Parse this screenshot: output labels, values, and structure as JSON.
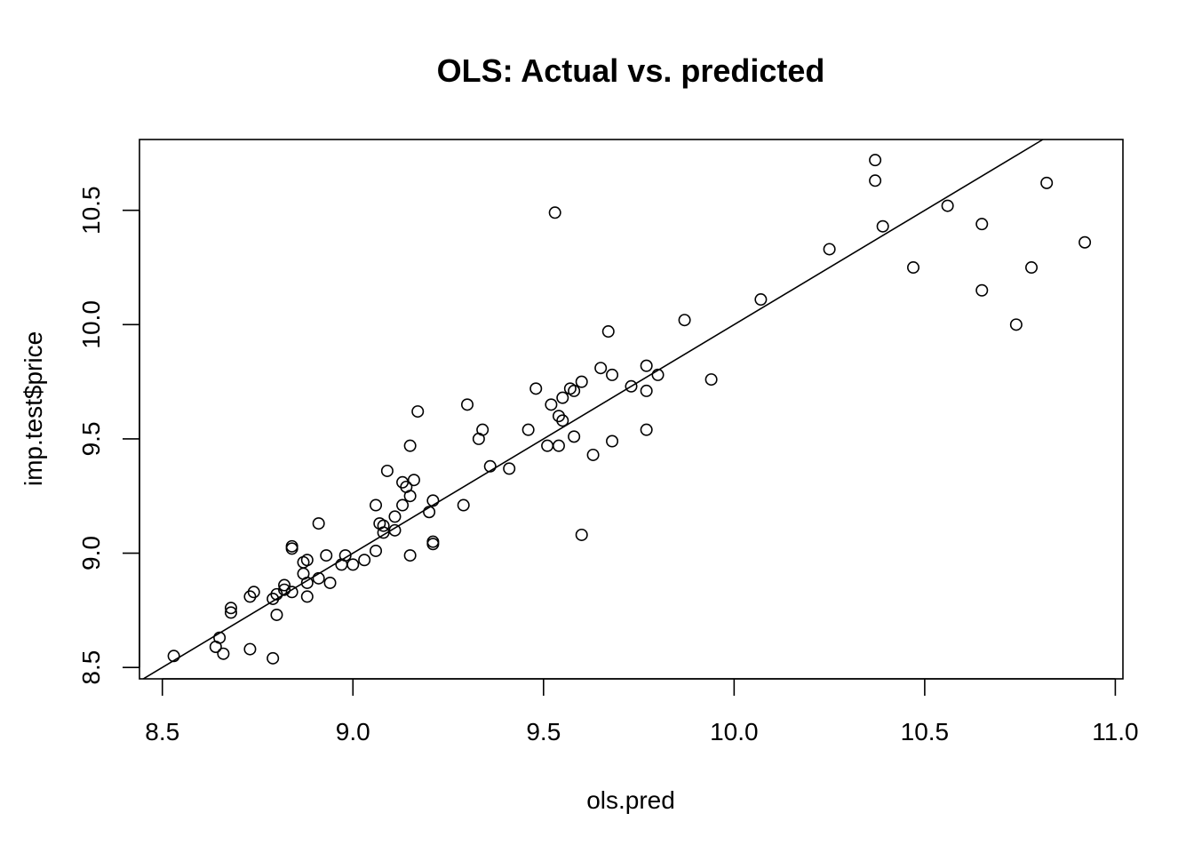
{
  "chart_data": {
    "type": "scatter",
    "title": "OLS: Actual vs. predicted",
    "xlabel": "ols.pred",
    "ylabel": "imp.test$price",
    "xlim": [
      8.44,
      11.02
    ],
    "ylim": [
      8.45,
      10.81
    ],
    "x_ticks": [
      "8.5",
      "9.0",
      "9.5",
      "10.0",
      "10.5",
      "11.0"
    ],
    "y_ticks": [
      "8.5",
      "9.0",
      "9.5",
      "10.0",
      "10.5"
    ],
    "grid": false,
    "reference_line": {
      "slope": 1,
      "intercept": 0
    },
    "points": [
      [
        8.53,
        8.55
      ],
      [
        8.64,
        8.59
      ],
      [
        8.65,
        8.63
      ],
      [
        8.66,
        8.56
      ],
      [
        8.68,
        8.74
      ],
      [
        8.68,
        8.76
      ],
      [
        8.73,
        8.81
      ],
      [
        8.73,
        8.58
      ],
      [
        8.74,
        8.83
      ],
      [
        8.79,
        8.8
      ],
      [
        8.8,
        8.82
      ],
      [
        8.8,
        8.73
      ],
      [
        8.79,
        8.54
      ],
      [
        8.82,
        8.84
      ],
      [
        8.82,
        8.86
      ],
      [
        8.84,
        8.83
      ],
      [
        8.84,
        9.03
      ],
      [
        8.84,
        9.02
      ],
      [
        8.87,
        8.91
      ],
      [
        8.87,
        8.96
      ],
      [
        8.88,
        8.97
      ],
      [
        8.88,
        8.81
      ],
      [
        8.88,
        8.87
      ],
      [
        8.91,
        8.89
      ],
      [
        8.91,
        9.13
      ],
      [
        8.93,
        8.99
      ],
      [
        8.94,
        8.87
      ],
      [
        8.97,
        8.95
      ],
      [
        8.98,
        8.99
      ],
      [
        9.0,
        8.95
      ],
      [
        9.03,
        8.97
      ],
      [
        9.06,
        9.21
      ],
      [
        9.06,
        9.01
      ],
      [
        9.07,
        9.13
      ],
      [
        9.08,
        9.12
      ],
      [
        9.08,
        9.09
      ],
      [
        9.09,
        9.36
      ],
      [
        9.11,
        9.1
      ],
      [
        9.11,
        9.16
      ],
      [
        9.13,
        9.31
      ],
      [
        9.13,
        9.21
      ],
      [
        9.14,
        9.29
      ],
      [
        9.15,
        9.47
      ],
      [
        9.15,
        9.25
      ],
      [
        9.15,
        8.99
      ],
      [
        9.16,
        9.32
      ],
      [
        9.17,
        9.62
      ],
      [
        9.2,
        9.18
      ],
      [
        9.21,
        9.23
      ],
      [
        9.21,
        9.04
      ],
      [
        9.21,
        9.05
      ],
      [
        9.29,
        9.21
      ],
      [
        9.3,
        9.65
      ],
      [
        9.33,
        9.5
      ],
      [
        9.34,
        9.54
      ],
      [
        9.36,
        9.38
      ],
      [
        9.41,
        9.37
      ],
      [
        9.46,
        9.54
      ],
      [
        9.48,
        9.72
      ],
      [
        9.51,
        9.47
      ],
      [
        9.52,
        9.65
      ],
      [
        9.54,
        9.6
      ],
      [
        9.54,
        9.47
      ],
      [
        9.55,
        9.68
      ],
      [
        9.55,
        9.58
      ],
      [
        9.53,
        10.49
      ],
      [
        9.57,
        9.72
      ],
      [
        9.58,
        9.71
      ],
      [
        9.58,
        9.51
      ],
      [
        9.6,
        9.75
      ],
      [
        9.6,
        9.08
      ],
      [
        9.63,
        9.43
      ],
      [
        9.65,
        9.81
      ],
      [
        9.67,
        9.97
      ],
      [
        9.68,
        9.78
      ],
      [
        9.68,
        9.49
      ],
      [
        9.73,
        9.73
      ],
      [
        9.77,
        9.82
      ],
      [
        9.77,
        9.71
      ],
      [
        9.77,
        9.54
      ],
      [
        9.8,
        9.78
      ],
      [
        9.87,
        10.02
      ],
      [
        9.94,
        9.76
      ],
      [
        10.07,
        10.11
      ],
      [
        10.25,
        10.33
      ],
      [
        10.37,
        10.63
      ],
      [
        10.37,
        10.72
      ],
      [
        10.39,
        10.43
      ],
      [
        10.47,
        10.25
      ],
      [
        10.56,
        10.52
      ],
      [
        10.65,
        10.44
      ],
      [
        10.65,
        10.15
      ],
      [
        10.74,
        10.0
      ],
      [
        10.78,
        10.25
      ],
      [
        10.82,
        10.62
      ],
      [
        10.92,
        10.36
      ]
    ]
  }
}
